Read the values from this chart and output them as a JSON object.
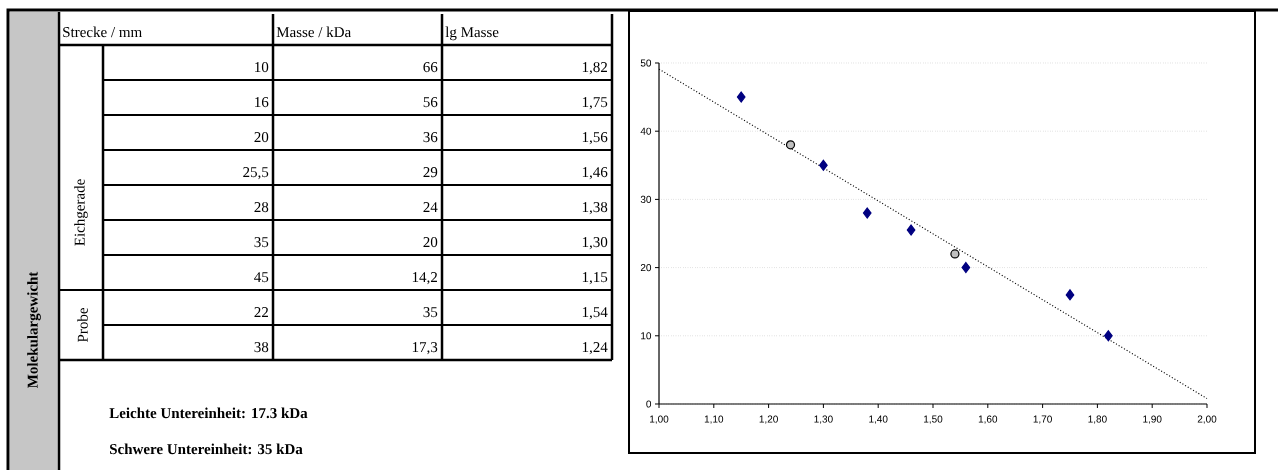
{
  "chart_data": [
    {
      "type": "other",
      "title": "Molekulargewicht",
      "categories": [
        "Strecke / mm",
        "Masse / kDa",
        "lg Masse"
      ],
      "y_categories": [
        "Eichgerade",
        "Probe"
      ],
      "cell_labels": [
        [
          "10",
          "66",
          "1,82"
        ],
        [
          "16",
          "56",
          "1,75"
        ],
        [
          "20",
          "36",
          "1,56"
        ],
        [
          "25,5",
          "29",
          "1,46"
        ],
        [
          "28",
          "24",
          "1,38"
        ],
        [
          "35",
          "20",
          "1,30"
        ],
        [
          "45",
          "14,2",
          "1,15"
        ],
        [
          "22",
          "35",
          "1,54"
        ],
        [
          "38",
          "17,3",
          "1,24"
        ]
      ],
      "annotations": [
        "Leichte Untereinheit: 17.3 kDa",
        "Schwere Untereinheit: 35 kDa"
      ]
    },
    {
      "type": "scatter",
      "grid": "y",
      "xlim": [
        1.0,
        2.0
      ],
      "ylim": [
        0,
        50
      ],
      "xticks": [
        {
          "value": 1.0,
          "label": "1,00"
        },
        {
          "value": 1.1,
          "label": "1,10"
        },
        {
          "value": 1.2,
          "label": "1,20"
        },
        {
          "value": 1.3,
          "label": "1,30"
        },
        {
          "value": 1.4,
          "label": "1,40"
        },
        {
          "value": 1.5,
          "label": "1,50"
        },
        {
          "value": 1.6,
          "label": "1,60"
        },
        {
          "value": 1.7,
          "label": "1,70"
        },
        {
          "value": 1.8,
          "label": "1,80"
        },
        {
          "value": 1.9,
          "label": "1,90"
        },
        {
          "value": 2.0,
          "label": "2,00"
        }
      ],
      "yticks": [
        0,
        10,
        20,
        30,
        40,
        50
      ],
      "series": [
        {
          "type": "line",
          "x": [
            1.0,
            2.0
          ],
          "values": [
            49.1,
            0.8
          ],
          "color": "#000000",
          "line_style": "dotted",
          "marker": "none"
        },
        {
          "x": [
            1.82,
            1.75,
            1.56,
            1.46,
            1.38,
            1.3,
            1.15
          ],
          "values": [
            10,
            16,
            20,
            25.5,
            28,
            35,
            45
          ],
          "color": "#000080",
          "marker": "diamond"
        },
        {
          "x": [
            1.54,
            1.24
          ],
          "values": [
            22,
            38
          ],
          "color": "#c0c0c0",
          "marker": "circle"
        }
      ]
    }
  ]
}
